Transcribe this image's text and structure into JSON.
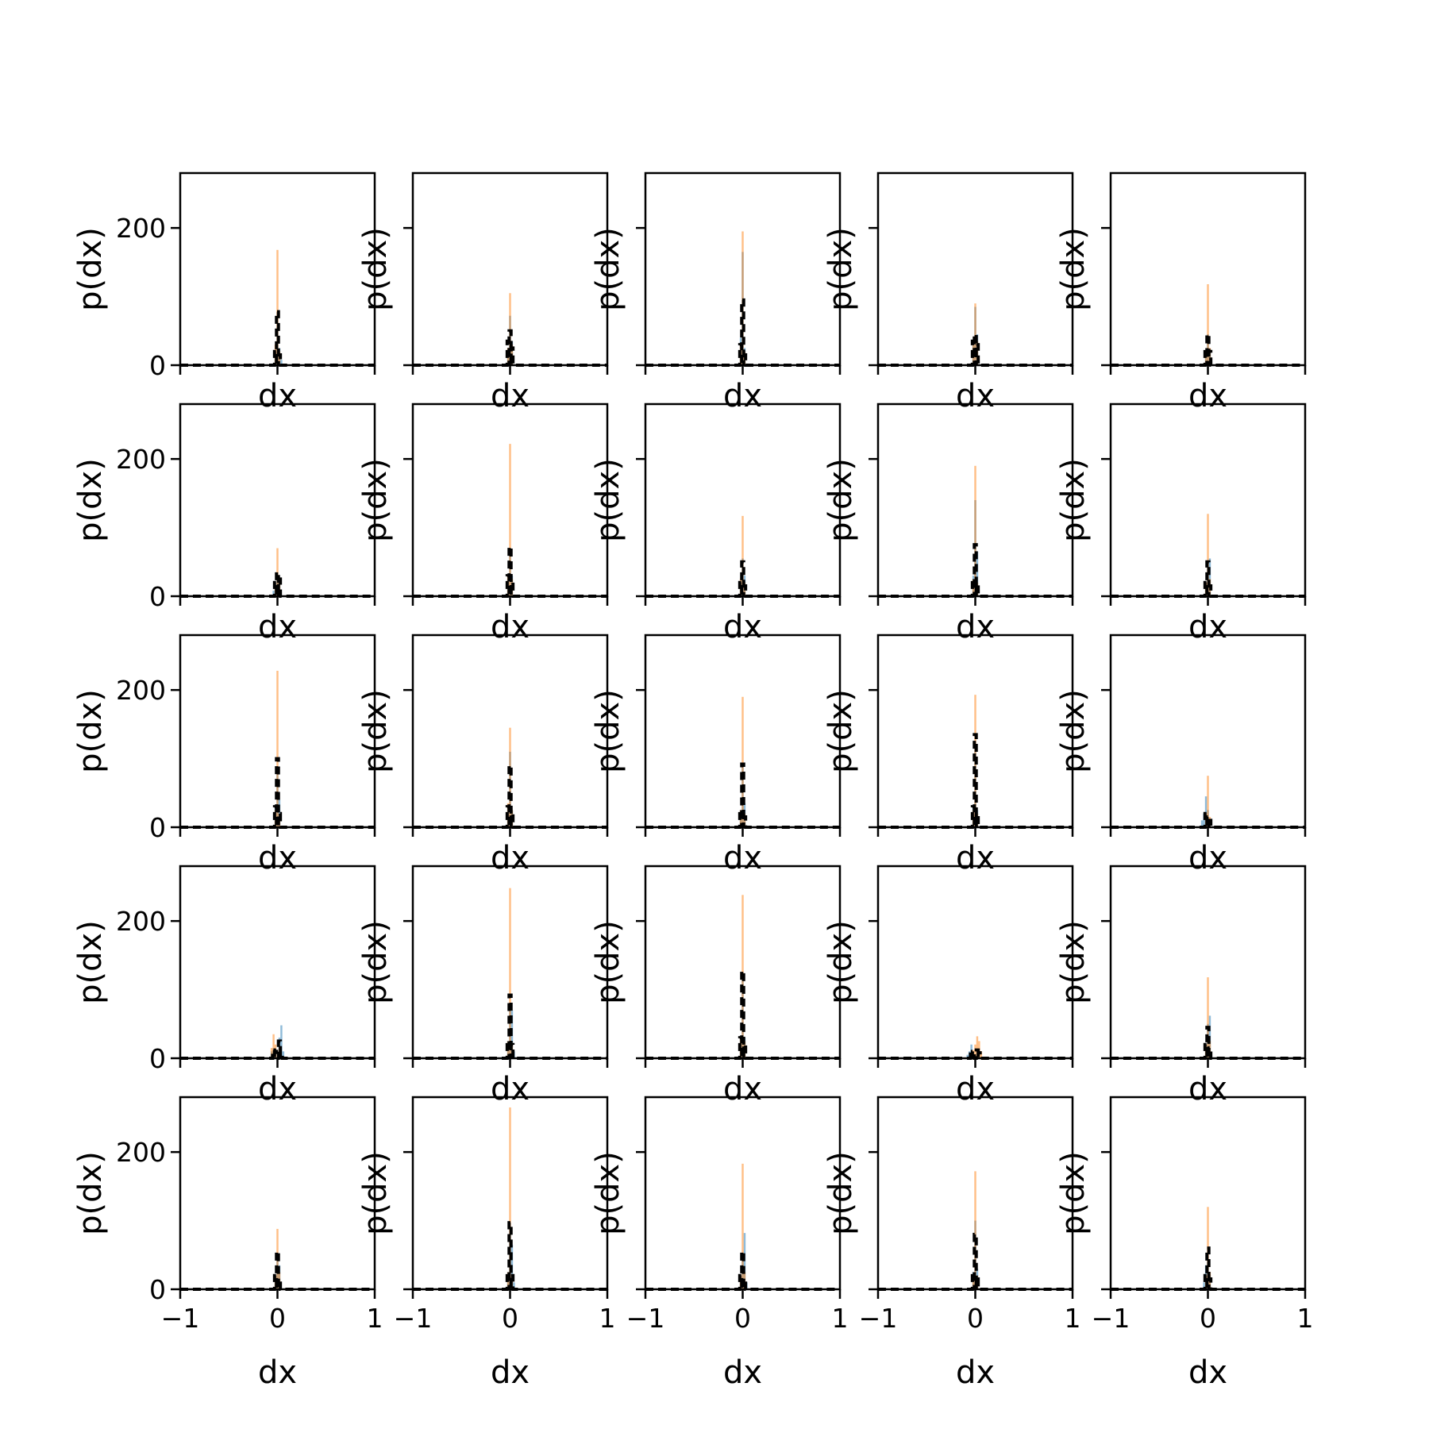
{
  "colors": {
    "series_a": "#1f77b4",
    "series_b": "#ff7f0e",
    "series_c": "#000000"
  },
  "chart_data": {
    "type": "bar",
    "layout": "5x5 grid of histograms, shared x and y axes",
    "xlabel": "dx",
    "ylabel": "p(dx)",
    "xlim": [
      -1,
      1
    ],
    "ylim": [
      0,
      280
    ],
    "x_ticks": [
      -1,
      0,
      1
    ],
    "x_tick_labels": [
      "−1",
      "0",
      "1"
    ],
    "y_ticks": [
      0,
      200
    ],
    "y_tick_labels": [
      "0",
      "200"
    ],
    "grid": false,
    "legend": "none",
    "series_styles": [
      "blue histogram, semi-transparent",
      "orange histogram, semi-transparent",
      "black dashed step outline"
    ],
    "panels": [
      {
        "row": 0,
        "col": 0,
        "a": [
          [
            -0.02,
            10
          ],
          [
            0,
            55
          ],
          [
            0.02,
            25
          ],
          [
            0.04,
            8
          ]
        ],
        "b": [
          [
            -0.02,
            30
          ],
          [
            0,
            168
          ],
          [
            0.02,
            20
          ]
        ],
        "c": [
          [
            -0.02,
            20
          ],
          [
            0,
            78
          ],
          [
            0.02,
            15
          ]
        ]
      },
      {
        "row": 0,
        "col": 1,
        "a": [
          [
            -0.02,
            20
          ],
          [
            0,
            72
          ],
          [
            0.02,
            35
          ]
        ],
        "b": [
          [
            -0.02,
            25
          ],
          [
            0,
            105
          ],
          [
            0.02,
            30
          ]
        ],
        "c": [
          [
            -0.02,
            35
          ],
          [
            0,
            50
          ],
          [
            0.02,
            25
          ]
        ]
      },
      {
        "row": 0,
        "col": 2,
        "a": [
          [
            -0.02,
            40
          ],
          [
            0,
            165
          ],
          [
            0.02,
            25
          ]
        ],
        "b": [
          [
            -0.02,
            30
          ],
          [
            0,
            195
          ],
          [
            0.02,
            20
          ]
        ],
        "c": [
          [
            -0.02,
            30
          ],
          [
            0,
            95
          ],
          [
            0.02,
            15
          ]
        ]
      },
      {
        "row": 0,
        "col": 3,
        "a": [
          [
            -0.02,
            30
          ],
          [
            0,
            85
          ],
          [
            0.02,
            45
          ]
        ],
        "b": [
          [
            -0.02,
            30
          ],
          [
            0,
            90
          ],
          [
            0.02,
            35
          ]
        ],
        "c": [
          [
            -0.02,
            35
          ],
          [
            0,
            45
          ],
          [
            0.02,
            30
          ]
        ]
      },
      {
        "row": 0,
        "col": 4,
        "a": [
          [
            -0.02,
            15
          ],
          [
            0,
            45
          ],
          [
            0.02,
            20
          ]
        ],
        "b": [
          [
            -0.02,
            20
          ],
          [
            0,
            118
          ],
          [
            0.02,
            25
          ]
        ],
        "c": [
          [
            -0.02,
            25
          ],
          [
            0,
            45
          ],
          [
            0.02,
            20
          ]
        ]
      },
      {
        "row": 1,
        "col": 0,
        "a": [
          [
            -0.04,
            8
          ],
          [
            -0.02,
            15
          ],
          [
            0,
            30
          ],
          [
            0.02,
            20
          ]
        ],
        "b": [
          [
            -0.02,
            15
          ],
          [
            0,
            70
          ],
          [
            0.02,
            25
          ]
        ],
        "c": [
          [
            -0.02,
            20
          ],
          [
            0,
            35
          ],
          [
            0.02,
            25
          ]
        ]
      },
      {
        "row": 1,
        "col": 1,
        "a": [
          [
            -0.02,
            25
          ],
          [
            0,
            70
          ],
          [
            0.02,
            30
          ]
        ],
        "b": [
          [
            -0.02,
            30
          ],
          [
            0,
            222
          ],
          [
            0.02,
            25
          ]
        ],
        "c": [
          [
            -0.02,
            30
          ],
          [
            0,
            72
          ],
          [
            0.02,
            20
          ]
        ]
      },
      {
        "row": 1,
        "col": 2,
        "a": [
          [
            -0.02,
            20
          ],
          [
            0,
            55
          ],
          [
            0.02,
            30
          ]
        ],
        "b": [
          [
            -0.02,
            25
          ],
          [
            0,
            117
          ],
          [
            0.02,
            20
          ]
        ],
        "c": [
          [
            -0.02,
            20
          ],
          [
            0,
            50
          ],
          [
            0.02,
            15
          ]
        ]
      },
      {
        "row": 1,
        "col": 3,
        "a": [
          [
            -0.02,
            30
          ],
          [
            0,
            140
          ],
          [
            0.02,
            65
          ]
        ],
        "b": [
          [
            -0.02,
            25
          ],
          [
            0,
            190
          ],
          [
            0.02,
            20
          ]
        ],
        "c": [
          [
            -0.02,
            25
          ],
          [
            0,
            75
          ],
          [
            0.02,
            20
          ]
        ]
      },
      {
        "row": 1,
        "col": 4,
        "a": [
          [
            -0.02,
            20
          ],
          [
            0,
            50
          ],
          [
            0.02,
            55
          ]
        ],
        "b": [
          [
            -0.02,
            20
          ],
          [
            0,
            120
          ],
          [
            0.02,
            25
          ]
        ],
        "c": [
          [
            -0.02,
            20
          ],
          [
            0,
            50
          ],
          [
            0.02,
            15
          ]
        ]
      },
      {
        "row": 2,
        "col": 0,
        "a": [
          [
            -0.02,
            30
          ],
          [
            0,
            80
          ],
          [
            0.02,
            40
          ]
        ],
        "b": [
          [
            -0.02,
            25
          ],
          [
            0,
            228
          ],
          [
            0.02,
            20
          ]
        ],
        "c": [
          [
            -0.02,
            30
          ],
          [
            0,
            100
          ],
          [
            0.02,
            20
          ]
        ]
      },
      {
        "row": 2,
        "col": 1,
        "a": [
          [
            -0.02,
            30
          ],
          [
            0,
            110
          ],
          [
            0.02,
            25
          ]
        ],
        "b": [
          [
            -0.02,
            35
          ],
          [
            0,
            145
          ],
          [
            0.02,
            25
          ]
        ],
        "c": [
          [
            -0.02,
            30
          ],
          [
            0,
            90
          ],
          [
            0.02,
            20
          ]
        ]
      },
      {
        "row": 2,
        "col": 2,
        "a": [
          [
            -0.02,
            25
          ],
          [
            0,
            90
          ],
          [
            0.02,
            35
          ]
        ],
        "b": [
          [
            -0.02,
            25
          ],
          [
            0,
            190
          ],
          [
            0.02,
            20
          ]
        ],
        "c": [
          [
            -0.02,
            25
          ],
          [
            0,
            92
          ],
          [
            0.02,
            15
          ]
        ]
      },
      {
        "row": 2,
        "col": 3,
        "a": [
          [
            -0.02,
            30
          ],
          [
            0,
            120
          ],
          [
            0.02,
            25
          ]
        ],
        "b": [
          [
            -0.02,
            25
          ],
          [
            0,
            193
          ],
          [
            0.02,
            20
          ]
        ],
        "c": [
          [
            -0.02,
            30
          ],
          [
            0,
            135
          ],
          [
            0.02,
            20
          ]
        ]
      },
      {
        "row": 2,
        "col": 4,
        "a": [
          [
            -0.06,
            10
          ],
          [
            -0.04,
            20
          ],
          [
            -0.02,
            45
          ],
          [
            0,
            25
          ],
          [
            0.02,
            10
          ]
        ],
        "b": [
          [
            -0.02,
            20
          ],
          [
            0,
            75
          ],
          [
            0.02,
            15
          ]
        ],
        "c": [
          [
            -0.02,
            20
          ],
          [
            0,
            15
          ],
          [
            0.02,
            10
          ]
        ]
      },
      {
        "row": 3,
        "col": 0,
        "a": [
          [
            -0.06,
            10
          ],
          [
            -0.04,
            15
          ],
          [
            0.02,
            30
          ],
          [
            0.04,
            48
          ],
          [
            0.06,
            10
          ]
        ],
        "b": [
          [
            -0.06,
            15
          ],
          [
            -0.04,
            35
          ],
          [
            -0.02,
            20
          ],
          [
            0.02,
            15
          ]
        ],
        "c": [
          [
            -0.04,
            12
          ],
          [
            -0.02,
            10
          ],
          [
            0.02,
            25
          ],
          [
            0.04,
            10
          ]
        ]
      },
      {
        "row": 3,
        "col": 1,
        "a": [
          [
            -0.02,
            25
          ],
          [
            0,
            75
          ],
          [
            0.02,
            70
          ],
          [
            0.04,
            10
          ]
        ],
        "b": [
          [
            -0.02,
            25
          ],
          [
            0,
            248
          ],
          [
            0.02,
            20
          ]
        ],
        "c": [
          [
            -0.02,
            25
          ],
          [
            0,
            92
          ],
          [
            0.02,
            20
          ]
        ]
      },
      {
        "row": 3,
        "col": 2,
        "a": [
          [
            -0.02,
            30
          ],
          [
            0,
            120
          ],
          [
            0.02,
            30
          ]
        ],
        "b": [
          [
            -0.02,
            30
          ],
          [
            0,
            238
          ],
          [
            0.02,
            25
          ]
        ],
        "c": [
          [
            -0.02,
            30
          ],
          [
            0,
            127
          ],
          [
            0.02,
            20
          ]
        ]
      },
      {
        "row": 3,
        "col": 3,
        "a": [
          [
            -0.08,
            5
          ],
          [
            -0.06,
            10
          ],
          [
            -0.04,
            20
          ],
          [
            -0.02,
            10
          ],
          [
            0.02,
            10
          ]
        ],
        "b": [
          [
            -0.04,
            8
          ],
          [
            -0.02,
            12
          ],
          [
            0,
            20
          ],
          [
            0.02,
            32
          ],
          [
            0.04,
            25
          ],
          [
            0.06,
            10
          ]
        ],
        "c": [
          [
            -0.04,
            6
          ],
          [
            -0.02,
            10
          ],
          [
            0.02,
            12
          ],
          [
            0.04,
            8
          ]
        ]
      },
      {
        "row": 3,
        "col": 4,
        "a": [
          [
            -0.02,
            20
          ],
          [
            0,
            50
          ],
          [
            0.02,
            62
          ]
        ],
        "b": [
          [
            -0.02,
            20
          ],
          [
            0,
            118
          ],
          [
            0.02,
            25
          ]
        ],
        "c": [
          [
            -0.02,
            20
          ],
          [
            0,
            45
          ],
          [
            0.02,
            15
          ]
        ]
      },
      {
        "row": 4,
        "col": 0,
        "a": [
          [
            -0.02,
            20
          ],
          [
            0,
            50
          ],
          [
            0.02,
            35
          ]
        ],
        "b": [
          [
            -0.02,
            20
          ],
          [
            0,
            88
          ],
          [
            0.02,
            25
          ]
        ],
        "c": [
          [
            -0.02,
            20
          ],
          [
            0,
            55
          ],
          [
            0.02,
            15
          ]
        ]
      },
      {
        "row": 4,
        "col": 1,
        "a": [
          [
            -0.02,
            25
          ],
          [
            0,
            80
          ],
          [
            0.02,
            65
          ],
          [
            0.04,
            10
          ]
        ],
        "b": [
          [
            -0.02,
            25
          ],
          [
            0,
            265
          ],
          [
            0.02,
            20
          ]
        ],
        "c": [
          [
            -0.02,
            25
          ],
          [
            0,
            97
          ],
          [
            0.02,
            20
          ]
        ]
      },
      {
        "row": 4,
        "col": 2,
        "a": [
          [
            -0.02,
            20
          ],
          [
            0,
            50
          ],
          [
            0.02,
            82
          ],
          [
            0.04,
            10
          ]
        ],
        "b": [
          [
            -0.02,
            20
          ],
          [
            0,
            183
          ],
          [
            0.02,
            25
          ]
        ],
        "c": [
          [
            -0.02,
            20
          ],
          [
            0,
            55
          ],
          [
            0.02,
            15
          ]
        ]
      },
      {
        "row": 4,
        "col": 3,
        "a": [
          [
            -0.02,
            25
          ],
          [
            0,
            100
          ],
          [
            0.02,
            30
          ]
        ],
        "b": [
          [
            -0.02,
            20
          ],
          [
            0,
            172
          ],
          [
            0.02,
            20
          ]
        ],
        "c": [
          [
            -0.02,
            25
          ],
          [
            0,
            80
          ],
          [
            0.02,
            15
          ]
        ]
      },
      {
        "row": 4,
        "col": 4,
        "a": [
          [
            -0.04,
            10
          ],
          [
            -0.02,
            35
          ],
          [
            0,
            40
          ],
          [
            0.02,
            20
          ]
        ],
        "b": [
          [
            -0.02,
            20
          ],
          [
            0,
            120
          ],
          [
            0.02,
            25
          ]
        ],
        "c": [
          [
            -0.02,
            20
          ],
          [
            0,
            60
          ],
          [
            0.02,
            15
          ]
        ]
      }
    ]
  }
}
